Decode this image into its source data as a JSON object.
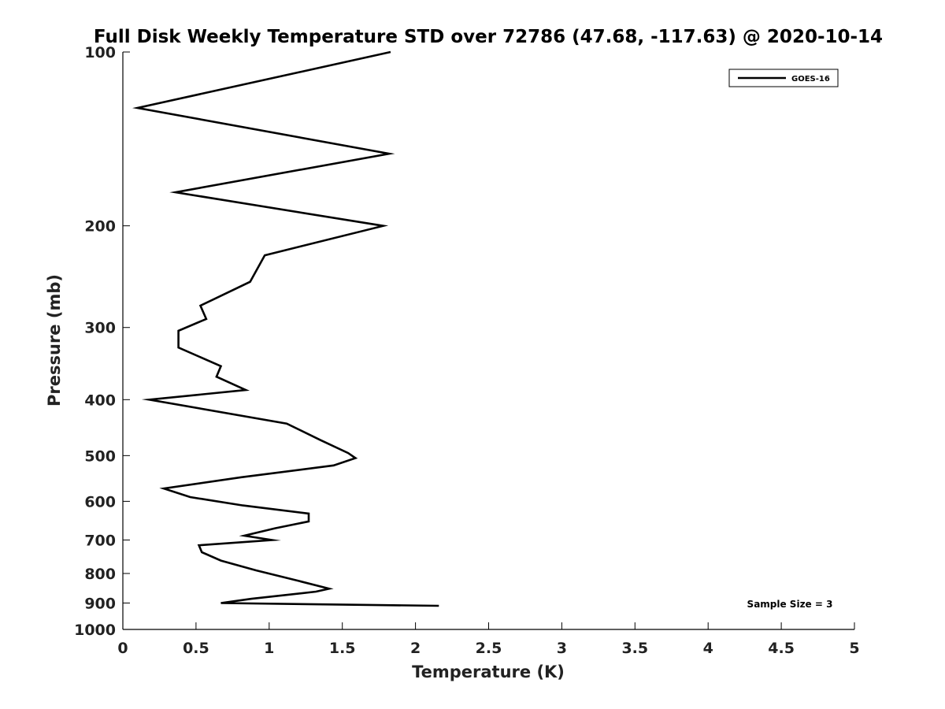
{
  "chart_data": {
    "type": "line",
    "title": "Full Disk Weekly Temperature STD over 72786 (47.68, -117.63) @ 2020-10-14",
    "xlabel": "Temperature (K)",
    "ylabel": "Pressure (mb)",
    "xlim": [
      0,
      5
    ],
    "ylim": [
      100,
      1000
    ],
    "y_scale": "log",
    "y_reversed": true,
    "grid": false,
    "legend_position": "top-right",
    "x_ticks": [
      0,
      0.5,
      1,
      1.5,
      2,
      2.5,
      3,
      3.5,
      4,
      4.5,
      5
    ],
    "x_tick_labels": [
      "0",
      "0.5",
      "1",
      "1.5",
      "2",
      "2.5",
      "3",
      "3.5",
      "4",
      "4.5",
      "5"
    ],
    "y_ticks": [
      100,
      200,
      300,
      400,
      500,
      600,
      700,
      800,
      900,
      1000
    ],
    "y_tick_labels": [
      "100",
      "200",
      "300",
      "400",
      "500",
      "600",
      "700",
      "800",
      "900",
      "1000"
    ],
    "series": [
      {
        "name": "GOES-16",
        "color": "#000000",
        "points": [
          {
            "x": 1.83,
            "y": 100
          },
          {
            "x": 0.1,
            "y": 125
          },
          {
            "x": 1.82,
            "y": 150
          },
          {
            "x": 0.36,
            "y": 175
          },
          {
            "x": 1.78,
            "y": 200
          },
          {
            "x": 0.97,
            "y": 225
          },
          {
            "x": 0.87,
            "y": 250
          },
          {
            "x": 0.53,
            "y": 275
          },
          {
            "x": 0.57,
            "y": 290
          },
          {
            "x": 0.38,
            "y": 304
          },
          {
            "x": 0.38,
            "y": 325
          },
          {
            "x": 0.67,
            "y": 350
          },
          {
            "x": 0.64,
            "y": 365
          },
          {
            "x": 0.84,
            "y": 385
          },
          {
            "x": 0.18,
            "y": 400
          },
          {
            "x": 1.12,
            "y": 440
          },
          {
            "x": 1.35,
            "y": 470
          },
          {
            "x": 1.54,
            "y": 495
          },
          {
            "x": 1.59,
            "y": 505
          },
          {
            "x": 1.44,
            "y": 520
          },
          {
            "x": 0.81,
            "y": 545
          },
          {
            "x": 0.28,
            "y": 570
          },
          {
            "x": 0.46,
            "y": 590
          },
          {
            "x": 0.82,
            "y": 610
          },
          {
            "x": 1.27,
            "y": 630
          },
          {
            "x": 1.27,
            "y": 650
          },
          {
            "x": 1.04,
            "y": 668
          },
          {
            "x": 0.83,
            "y": 688
          },
          {
            "x": 1.02,
            "y": 700
          },
          {
            "x": 0.52,
            "y": 715
          },
          {
            "x": 0.54,
            "y": 735
          },
          {
            "x": 0.67,
            "y": 760
          },
          {
            "x": 0.91,
            "y": 790
          },
          {
            "x": 1.21,
            "y": 825
          },
          {
            "x": 1.41,
            "y": 850
          },
          {
            "x": 1.32,
            "y": 860
          },
          {
            "x": 0.88,
            "y": 885
          },
          {
            "x": 0.67,
            "y": 900
          },
          {
            "x": 2.16,
            "y": 910
          }
        ]
      }
    ],
    "annotations": [
      "Sample Size = 3"
    ]
  }
}
